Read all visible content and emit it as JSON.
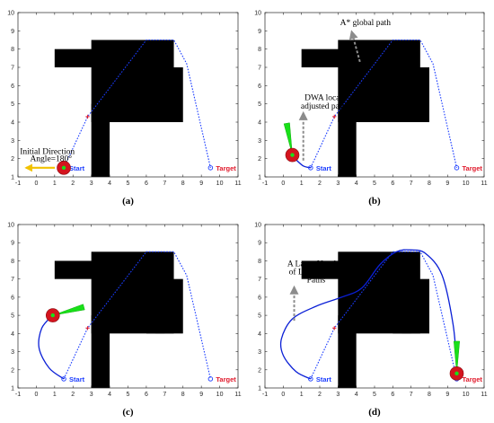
{
  "chart_data": [
    {
      "type": "scatter",
      "panel": "(a)",
      "caption": "(a)",
      "xlim": [
        -1,
        11
      ],
      "ylim": [
        1,
        10
      ],
      "xticks": [
        -1,
        0,
        1,
        2,
        3,
        4,
        5,
        6,
        7,
        8,
        9,
        10,
        11
      ],
      "yticks": [
        1,
        2,
        3,
        4,
        5,
        6,
        7,
        8,
        9,
        10
      ],
      "grid": false,
      "obstacles": [
        [
          3,
          8.5,
          7,
          4
        ],
        [
          6,
          8.5,
          7.5,
          4
        ],
        [
          6.5,
          7,
          8,
          4
        ],
        [
          3,
          5,
          4,
          1
        ],
        [
          1,
          8,
          5,
          7
        ]
      ],
      "global_path": [
        [
          1.5,
          1.5
        ],
        [
          2.8,
          4.3
        ],
        [
          6,
          8.5
        ],
        [
          7.5,
          8.5
        ],
        [
          8.2,
          7.2
        ],
        [
          9.5,
          1.5
        ]
      ],
      "start": {
        "x": 1.5,
        "y": 1.5,
        "label": "Start"
      },
      "target": {
        "x": 9.5,
        "y": 1.5,
        "label": "Target"
      },
      "waypoint": {
        "x": 2.8,
        "y": 4.3
      },
      "robot": {
        "x": 1.5,
        "y": 1.5,
        "heading_deg": 180
      },
      "local_path": [],
      "annotations": [
        {
          "id": "initial-direction",
          "text": "Initial Direction",
          "x": 0.6,
          "y": 2.25
        },
        {
          "id": "angle",
          "text": "Angle=180°",
          "x": 0.8,
          "y": 1.85
        }
      ]
    },
    {
      "type": "scatter",
      "panel": "(b)",
      "caption": "(b)",
      "xlim": [
        -1,
        11
      ],
      "ylim": [
        1,
        10
      ],
      "xticks": [
        -1,
        0,
        1,
        2,
        3,
        4,
        5,
        6,
        7,
        8,
        9,
        10,
        11
      ],
      "yticks": [
        1,
        2,
        3,
        4,
        5,
        6,
        7,
        8,
        9,
        10
      ],
      "grid": false,
      "obstacles": [
        [
          3,
          8.5,
          7,
          4
        ],
        [
          6,
          8.5,
          7.5,
          4
        ],
        [
          6.5,
          7,
          8,
          4
        ],
        [
          3,
          5,
          4,
          1
        ],
        [
          1,
          8,
          5,
          7
        ]
      ],
      "global_path": [
        [
          1.5,
          1.5
        ],
        [
          2.8,
          4.3
        ],
        [
          6,
          8.5
        ],
        [
          7.5,
          8.5
        ],
        [
          8.2,
          7.2
        ],
        [
          9.5,
          1.5
        ]
      ],
      "start": {
        "x": 1.5,
        "y": 1.5,
        "label": "Start"
      },
      "target": {
        "x": 9.5,
        "y": 1.5,
        "label": "Target"
      },
      "waypoint": {
        "x": 2.8,
        "y": 4.3
      },
      "robot": {
        "x": 0.5,
        "y": 2.2,
        "heading_deg": 100
      },
      "local_path": [
        [
          1.5,
          1.5
        ],
        [
          1.1,
          1.6
        ],
        [
          0.7,
          1.95
        ],
        [
          0.5,
          2.2
        ]
      ],
      "annotations": [
        {
          "id": "global-path-label",
          "text": "A* global path",
          "x": 4.5,
          "y": 9.3
        },
        {
          "id": "dwa-label-1",
          "text": "DWA local",
          "x": 2.2,
          "y": 5.2
        },
        {
          "id": "dwa-label-2",
          "text": "adjusted path",
          "x": 2.2,
          "y": 4.75
        }
      ]
    },
    {
      "type": "scatter",
      "panel": "(c)",
      "caption": "(c)",
      "xlim": [
        -1,
        11
      ],
      "ylim": [
        1,
        10
      ],
      "xticks": [
        -1,
        0,
        1,
        2,
        3,
        4,
        5,
        6,
        7,
        8,
        9,
        10,
        11
      ],
      "yticks": [
        1,
        2,
        3,
        4,
        5,
        6,
        7,
        8,
        9,
        10
      ],
      "grid": false,
      "obstacles": [
        [
          3,
          8.5,
          7,
          4
        ],
        [
          6,
          8.5,
          7.5,
          4
        ],
        [
          6.5,
          7,
          8,
          4
        ],
        [
          3,
          5,
          4,
          1
        ],
        [
          1,
          8,
          5,
          7
        ]
      ],
      "global_path": [
        [
          1.5,
          1.5
        ],
        [
          2.8,
          4.3
        ],
        [
          6,
          8.5
        ],
        [
          7.5,
          8.5
        ],
        [
          8.2,
          7.2
        ],
        [
          9.5,
          1.5
        ]
      ],
      "start": {
        "x": 1.5,
        "y": 1.5,
        "label": "Start"
      },
      "target": {
        "x": 9.5,
        "y": 1.5,
        "label": "Target"
      },
      "waypoint": {
        "x": 2.8,
        "y": 4.3
      },
      "robot": {
        "x": 0.9,
        "y": 5.0,
        "heading_deg": 15
      },
      "local_path": [
        [
          1.5,
          1.5
        ],
        [
          0.7,
          2.1
        ],
        [
          0.15,
          3.2
        ],
        [
          0.3,
          4.3
        ],
        [
          0.9,
          5.0
        ]
      ],
      "annotations": []
    },
    {
      "type": "scatter",
      "panel": "(d)",
      "caption": "(d)",
      "xlim": [
        -1,
        11
      ],
      "ylim": [
        1,
        10
      ],
      "xticks": [
        -1,
        0,
        1,
        2,
        3,
        4,
        5,
        6,
        7,
        8,
        9,
        10,
        11
      ],
      "yticks": [
        1,
        2,
        3,
        4,
        5,
        6,
        7,
        8,
        9,
        10
      ],
      "grid": false,
      "obstacles": [
        [
          3,
          8.5,
          7,
          4
        ],
        [
          6,
          8.5,
          7.5,
          4
        ],
        [
          6.5,
          7,
          8,
          4
        ],
        [
          3,
          5,
          4,
          1
        ],
        [
          1,
          8,
          5,
          7
        ]
      ],
      "global_path": [
        [
          1.5,
          1.5
        ],
        [
          2.8,
          4.3
        ],
        [
          6,
          8.5
        ],
        [
          7.5,
          8.5
        ],
        [
          8.2,
          7.2
        ],
        [
          9.5,
          1.5
        ]
      ],
      "start": {
        "x": 1.5,
        "y": 1.5,
        "label": "Start"
      },
      "target": {
        "x": 9.5,
        "y": 1.5,
        "label": "Target"
      },
      "waypoint": {
        "x": 2.8,
        "y": 4.3
      },
      "robot": {
        "x": 9.5,
        "y": 1.8,
        "heading_deg": 90
      },
      "local_path": [
        [
          1.5,
          1.5
        ],
        [
          0.7,
          1.9
        ],
        [
          0.0,
          2.8
        ],
        [
          -0.1,
          3.7
        ],
        [
          0.5,
          4.8
        ],
        [
          1.8,
          5.5
        ],
        [
          3.2,
          6.0
        ],
        [
          4.3,
          6.5
        ],
        [
          5.3,
          7.8
        ],
        [
          6.2,
          8.5
        ],
        [
          7.0,
          8.6
        ],
        [
          7.8,
          8.4
        ],
        [
          8.7,
          7.2
        ],
        [
          9.3,
          4.5
        ],
        [
          9.5,
          2.2
        ],
        [
          9.5,
          1.8
        ]
      ],
      "annotations": [
        {
          "id": "detour-label-1",
          "text": "A Large Number",
          "x": 1.8,
          "y": 7.7
        },
        {
          "id": "detour-label-2",
          "text": "of Local Detour",
          "x": 1.8,
          "y": 7.25
        },
        {
          "id": "detour-label-3",
          "text": "Paths",
          "x": 1.8,
          "y": 6.8
        }
      ]
    }
  ]
}
